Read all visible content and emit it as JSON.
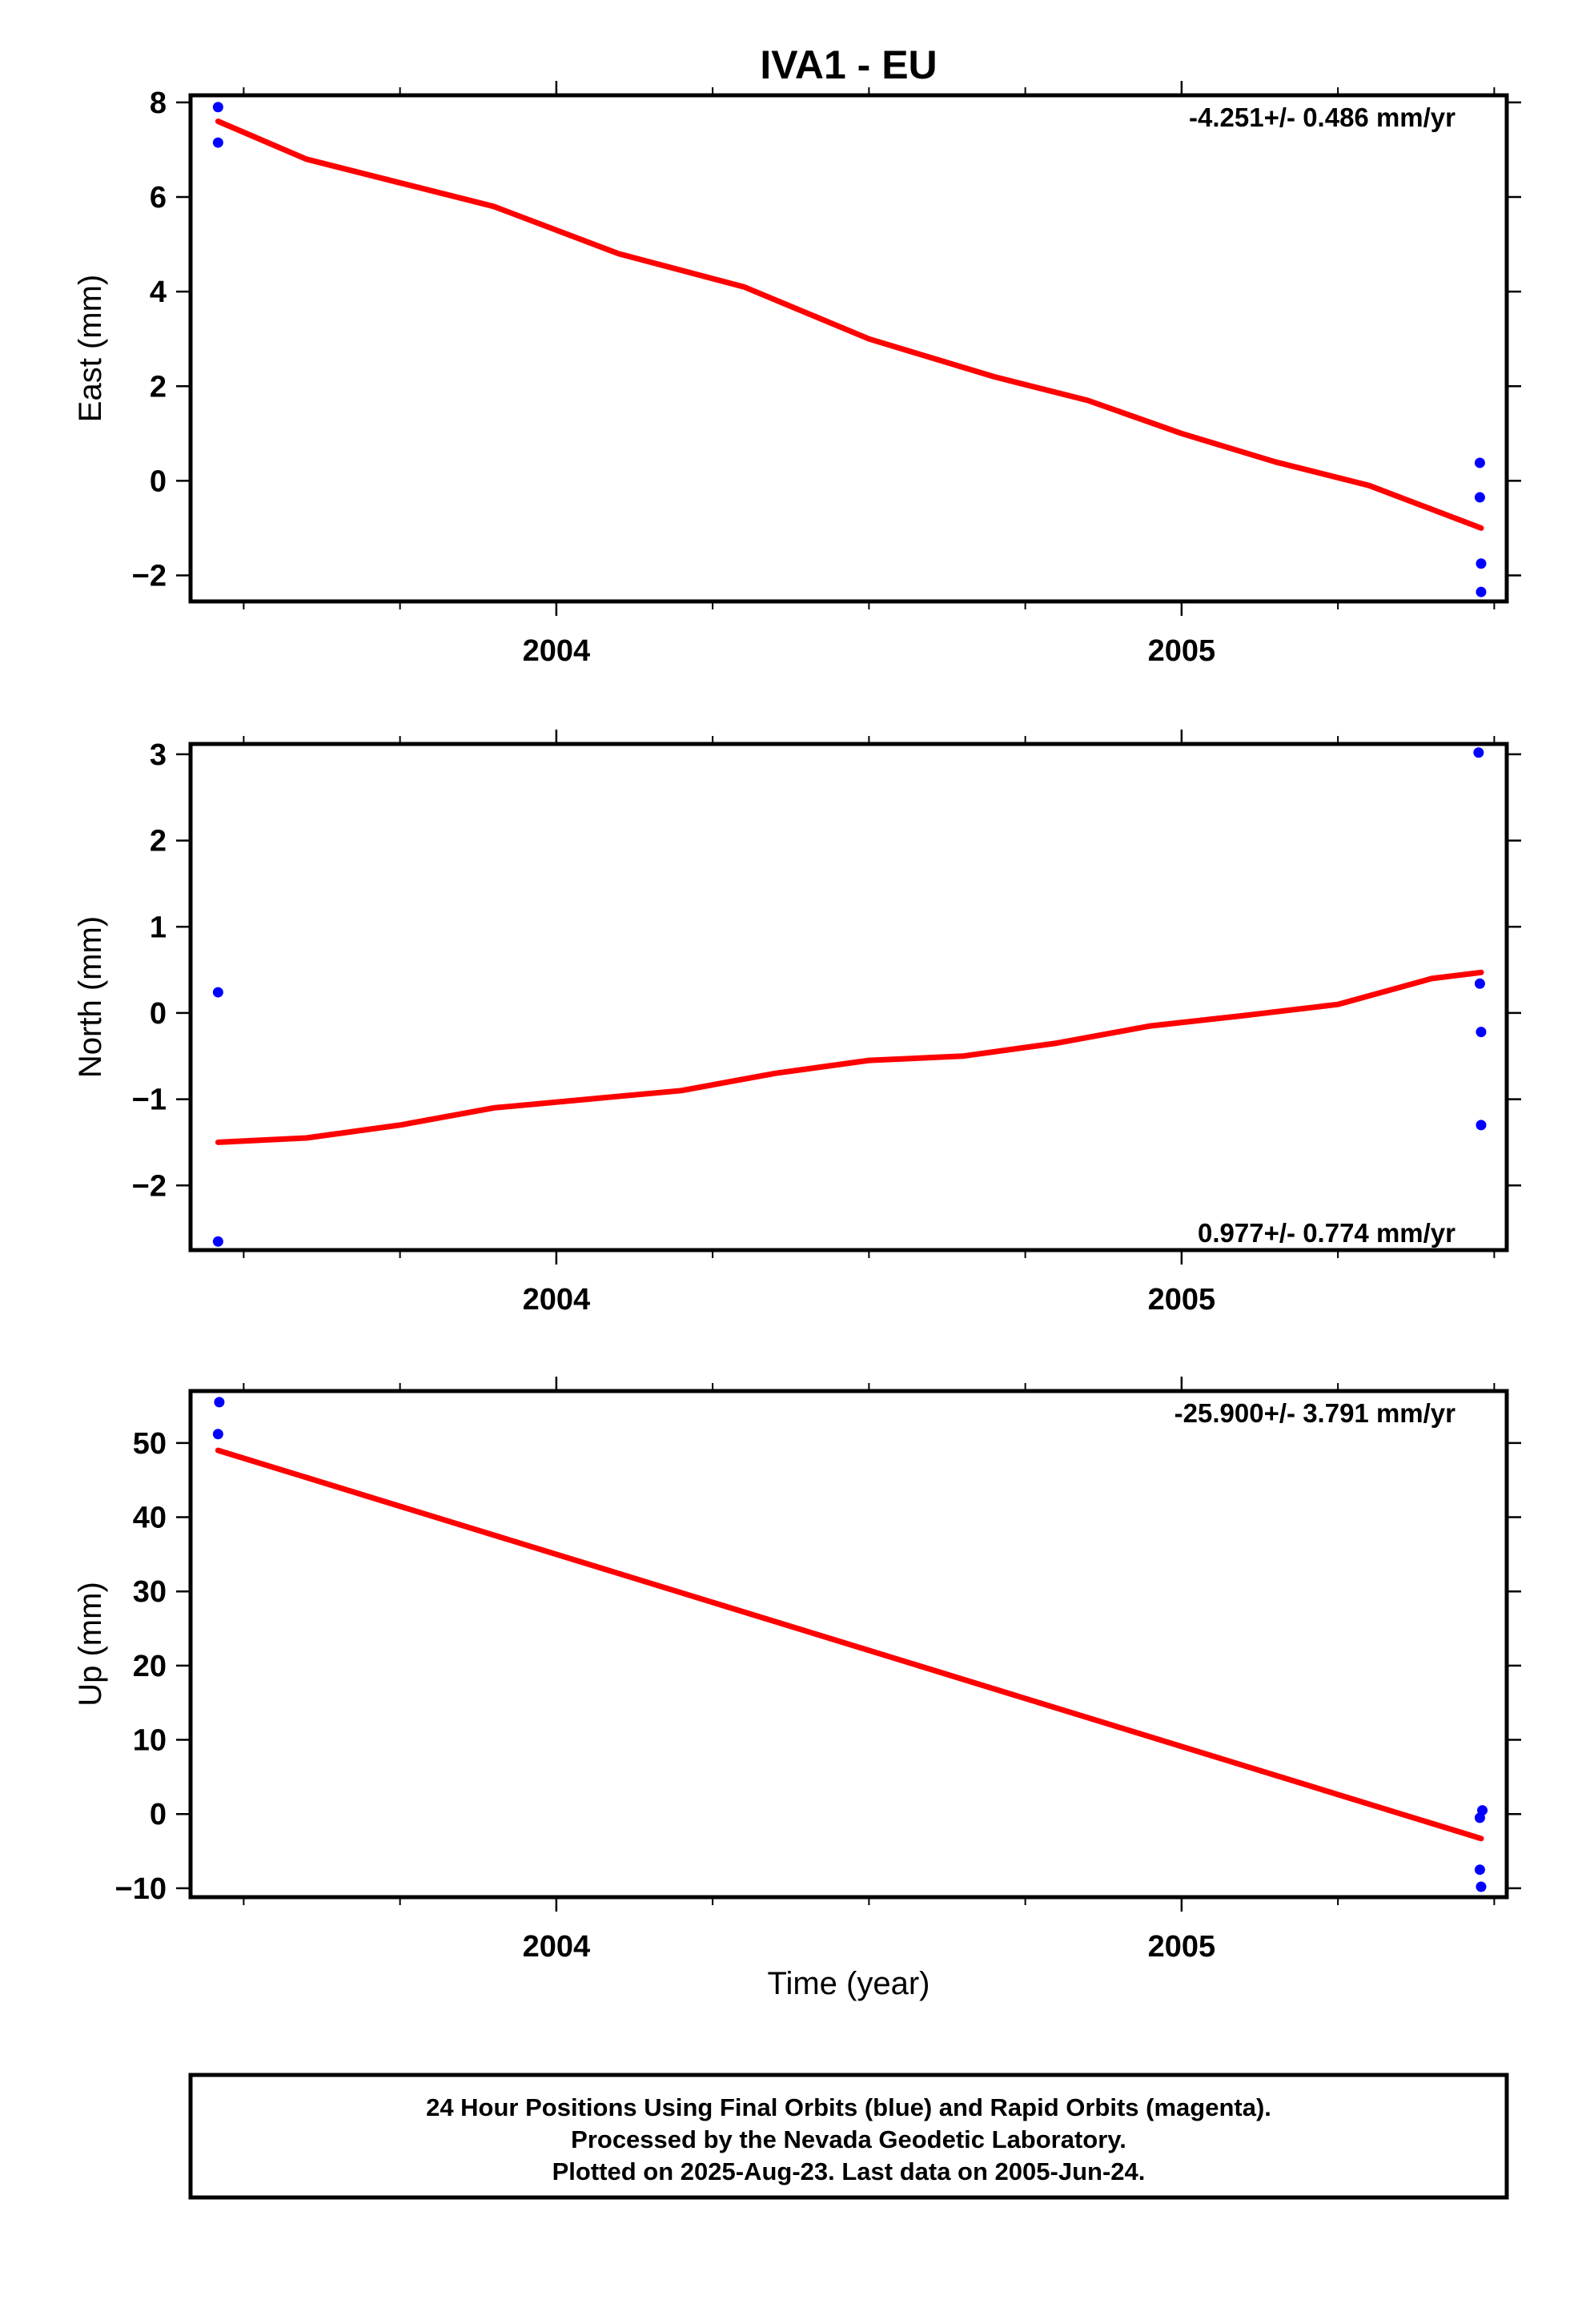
{
  "title": "IVA1 - EU",
  "xlabel": "Time (year)",
  "footer": {
    "line1": "24 Hour Positions Using Final Orbits (blue) and Rapid Orbits (magenta).",
    "line2": "Processed by the Nevada Geodetic Laboratory.",
    "line3": "Plotted on 2025-Aug-23. Last data on 2005-Jun-24."
  },
  "colors": {
    "points": "#0000ff",
    "fit": "#ff0000",
    "frame": "#000000"
  },
  "chart_data": [
    {
      "type": "scatter",
      "ylabel": "East (mm)",
      "rate_label": "-4.251+/- 0.486 mm/yr",
      "rate_position": "top-right",
      "xlim": [
        2003.415,
        2005.52
      ],
      "ylim": [
        -2.55,
        8.15
      ],
      "xticks": [
        2004,
        2005
      ],
      "xticklabels": [
        "2004",
        "2005"
      ],
      "yticks": [
        -2,
        0,
        2,
        4,
        6,
        8
      ],
      "yticklabels": [
        "−2",
        "0",
        "2",
        "4",
        "6",
        "8"
      ],
      "series": [
        {
          "kind": "points",
          "x": [
            2003.459,
            2003.459,
            2005.477,
            2005.477,
            2005.479,
            2005.479
          ],
          "y": [
            7.9,
            7.15,
            0.38,
            -0.35,
            -1.75,
            -2.35
          ]
        },
        {
          "kind": "fit",
          "x": [
            2003.459,
            2003.6,
            2003.75,
            2003.9,
            2004.1,
            2004.3,
            2004.5,
            2004.7,
            2004.85,
            2005.0,
            2005.15,
            2005.3,
            2005.479
          ],
          "y": [
            7.6,
            6.8,
            6.3,
            5.8,
            4.8,
            4.1,
            3.0,
            2.2,
            1.7,
            1.0,
            0.4,
            -0.1,
            -1.0
          ]
        }
      ]
    },
    {
      "type": "scatter",
      "ylabel": "North (mm)",
      "rate_label": "0.977+/- 0.774 mm/yr",
      "rate_position": "bottom-right",
      "xlim": [
        2003.415,
        2005.52
      ],
      "ylim": [
        -2.75,
        3.12
      ],
      "xticks": [
        2004,
        2005
      ],
      "xticklabels": [
        "2004",
        "2005"
      ],
      "yticks": [
        -2,
        -1,
        0,
        1,
        2,
        3
      ],
      "yticklabels": [
        "−2",
        "−1",
        "0",
        "1",
        "2",
        "3"
      ],
      "series": [
        {
          "kind": "points",
          "x": [
            2003.459,
            2003.459,
            2005.475,
            2005.477,
            2005.479,
            2005.479
          ],
          "y": [
            0.24,
            -2.65,
            3.02,
            0.34,
            -0.22,
            -1.3
          ]
        },
        {
          "kind": "fit",
          "x": [
            2003.459,
            2003.6,
            2003.75,
            2003.9,
            2004.05,
            2004.2,
            2004.35,
            2004.5,
            2004.65,
            2004.8,
            2004.95,
            2005.1,
            2005.25,
            2005.4,
            2005.479
          ],
          "y": [
            -1.5,
            -1.45,
            -1.3,
            -1.1,
            -1.0,
            -0.9,
            -0.7,
            -0.55,
            -0.5,
            -0.35,
            -0.15,
            -0.03,
            0.1,
            0.4,
            0.47
          ]
        }
      ]
    },
    {
      "type": "scatter",
      "ylabel": "Up (mm)",
      "rate_label": "-25.900+/- 3.791 mm/yr",
      "rate_position": "top-right",
      "xlim": [
        2003.415,
        2005.52
      ],
      "ylim": [
        -11.2,
        57.0
      ],
      "xticks": [
        2004,
        2005
      ],
      "xticklabels": [
        "2004",
        "2005"
      ],
      "yticks": [
        -10,
        0,
        10,
        20,
        30,
        40,
        50
      ],
      "yticklabels": [
        "−10",
        "0",
        "10",
        "20",
        "30",
        "40",
        "50"
      ],
      "series": [
        {
          "kind": "points",
          "x": [
            2003.461,
            2003.459,
            2005.477,
            2005.481,
            2005.477,
            2005.479
          ],
          "y": [
            55.5,
            51.2,
            -0.5,
            0.5,
            -7.5,
            -9.8
          ]
        },
        {
          "kind": "fit",
          "x": [
            2003.459,
            2005.479
          ],
          "y": [
            49.0,
            -3.3
          ]
        }
      ]
    }
  ]
}
